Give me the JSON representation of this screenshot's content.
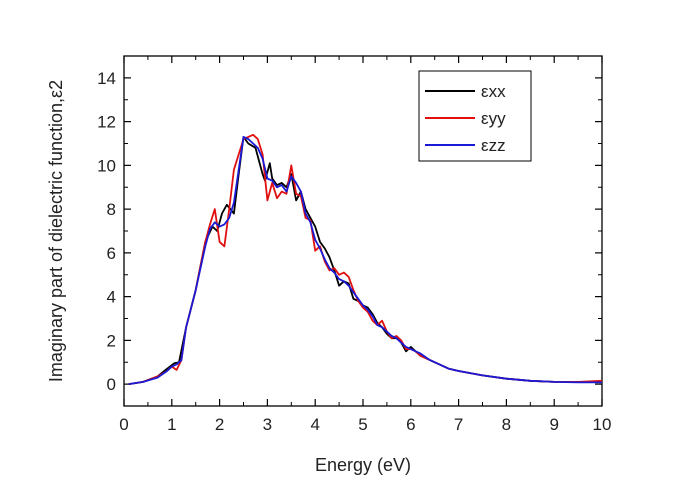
{
  "chart_data": {
    "type": "line",
    "title": "",
    "xlabel": "Energy (eV)",
    "ylabel": "Imaginary part of dielectric function,ε2",
    "xlim": [
      0,
      10
    ],
    "ylim": [
      -1,
      15
    ],
    "xticks": [
      0,
      1,
      2,
      3,
      4,
      5,
      6,
      7,
      8,
      9,
      10
    ],
    "yticks": [
      0,
      2,
      4,
      6,
      8,
      10,
      12,
      14
    ],
    "xtick_labels": [
      "0",
      "1",
      "2",
      "3",
      "4",
      "5",
      "6",
      "7",
      "8",
      "9",
      "10"
    ],
    "ytick_labels": [
      "0",
      "2",
      "4",
      "6",
      "8",
      "10",
      "12",
      "14"
    ],
    "grid": false,
    "legend_position": "top-right",
    "series": [
      {
        "name": "εxx",
        "color": "#000000",
        "x": [
          0.1,
          0.4,
          0.7,
          0.9,
          1.05,
          1.15,
          1.3,
          1.5,
          1.7,
          1.85,
          1.95,
          2.05,
          2.15,
          2.3,
          2.4,
          2.5,
          2.6,
          2.75,
          2.9,
          2.95,
          3.05,
          3.1,
          3.2,
          3.3,
          3.4,
          3.5,
          3.6,
          3.7,
          3.8,
          3.9,
          4.0,
          4.1,
          4.2,
          4.3,
          4.4,
          4.5,
          4.6,
          4.7,
          4.8,
          4.9,
          5.0,
          5.1,
          5.2,
          5.3,
          5.4,
          5.5,
          5.6,
          5.7,
          5.8,
          5.9,
          6.0,
          6.1,
          6.2,
          6.4,
          6.6,
          6.8,
          7.0,
          7.5,
          8.0,
          8.5,
          9.0,
          9.5,
          10.0
        ],
        "y": [
          0,
          0.1,
          0.35,
          0.7,
          0.95,
          1.0,
          2.6,
          4.3,
          6.5,
          7.2,
          7.0,
          7.8,
          8.2,
          7.8,
          9.6,
          11.3,
          11.0,
          10.8,
          9.6,
          9.3,
          10.1,
          9.4,
          9.1,
          9.2,
          9.0,
          9.6,
          8.4,
          8.8,
          8.0,
          7.6,
          7.2,
          6.5,
          6.2,
          5.8,
          5.2,
          4.5,
          4.7,
          4.6,
          3.9,
          3.8,
          3.6,
          3.5,
          3.2,
          2.8,
          2.6,
          2.3,
          2.1,
          2.1,
          1.9,
          1.5,
          1.7,
          1.5,
          1.3,
          1.1,
          0.9,
          0.7,
          0.6,
          0.4,
          0.25,
          0.15,
          0.1,
          0.1,
          0.1
        ]
      },
      {
        "name": "εyy",
        "color": "#e01010",
        "x": [
          0.1,
          0.4,
          0.7,
          0.9,
          1.0,
          1.1,
          1.2,
          1.3,
          1.5,
          1.7,
          1.8,
          1.9,
          2.0,
          2.1,
          2.2,
          2.3,
          2.4,
          2.5,
          2.6,
          2.7,
          2.8,
          2.9,
          3.0,
          3.1,
          3.2,
          3.3,
          3.4,
          3.5,
          3.6,
          3.7,
          3.8,
          3.9,
          4.0,
          4.1,
          4.2,
          4.3,
          4.4,
          4.5,
          4.6,
          4.7,
          4.8,
          4.9,
          5.0,
          5.1,
          5.2,
          5.3,
          5.4,
          5.5,
          5.6,
          5.7,
          5.8,
          5.9,
          6.0,
          6.1,
          6.2,
          6.4,
          6.6,
          6.8,
          7.0,
          7.5,
          8.0,
          8.5,
          9.0,
          9.5,
          10.0
        ],
        "y": [
          0,
          0.1,
          0.35,
          0.6,
          0.8,
          0.65,
          1.1,
          2.6,
          4.3,
          6.5,
          7.3,
          8.0,
          6.5,
          6.3,
          8.0,
          9.8,
          10.5,
          11.2,
          11.3,
          11.4,
          11.2,
          10.5,
          8.4,
          9.2,
          8.5,
          8.8,
          8.7,
          10.0,
          8.7,
          8.6,
          7.6,
          7.5,
          6.1,
          6.3,
          5.6,
          5.2,
          5.3,
          5.0,
          5.1,
          4.9,
          4.3,
          3.8,
          3.5,
          3.3,
          2.9,
          2.7,
          2.9,
          2.4,
          2.1,
          2.2,
          2.0,
          1.6,
          1.6,
          1.5,
          1.3,
          1.1,
          0.9,
          0.7,
          0.6,
          0.4,
          0.25,
          0.15,
          0.1,
          0.1,
          0.15
        ]
      },
      {
        "name": "εzz",
        "color": "#1a1ad6",
        "x": [
          0.1,
          0.4,
          0.7,
          0.9,
          1.0,
          1.1,
          1.2,
          1.3,
          1.5,
          1.7,
          1.8,
          1.9,
          2.0,
          2.1,
          2.2,
          2.3,
          2.4,
          2.5,
          2.6,
          2.7,
          2.8,
          2.9,
          3.0,
          3.1,
          3.2,
          3.3,
          3.4,
          3.5,
          3.6,
          3.7,
          3.8,
          3.9,
          4.0,
          4.1,
          4.2,
          4.3,
          4.4,
          4.5,
          4.6,
          4.7,
          4.8,
          4.9,
          5.0,
          5.1,
          5.2,
          5.3,
          5.4,
          5.5,
          5.6,
          5.7,
          5.8,
          5.9,
          6.0,
          6.1,
          6.2,
          6.4,
          6.6,
          6.8,
          7.0,
          7.5,
          8.0,
          8.5,
          9.0,
          9.5,
          10.0
        ],
        "y": [
          0,
          0.1,
          0.3,
          0.6,
          0.8,
          0.9,
          1.1,
          2.6,
          4.3,
          6.3,
          7.1,
          7.4,
          7.2,
          7.3,
          7.6,
          8.3,
          9.8,
          11.3,
          11.2,
          11.0,
          10.8,
          10.3,
          9.4,
          9.3,
          9.0,
          9.1,
          8.8,
          9.5,
          9.2,
          8.8,
          7.8,
          7.4,
          6.6,
          6.2,
          5.7,
          5.3,
          5.1,
          4.8,
          4.7,
          4.5,
          4.2,
          3.9,
          3.6,
          3.4,
          3.1,
          2.7,
          2.6,
          2.4,
          2.2,
          2.1,
          1.9,
          1.7,
          1.6,
          1.5,
          1.4,
          1.1,
          0.9,
          0.7,
          0.6,
          0.4,
          0.25,
          0.15,
          0.1,
          0.08,
          0.08
        ]
      }
    ]
  }
}
